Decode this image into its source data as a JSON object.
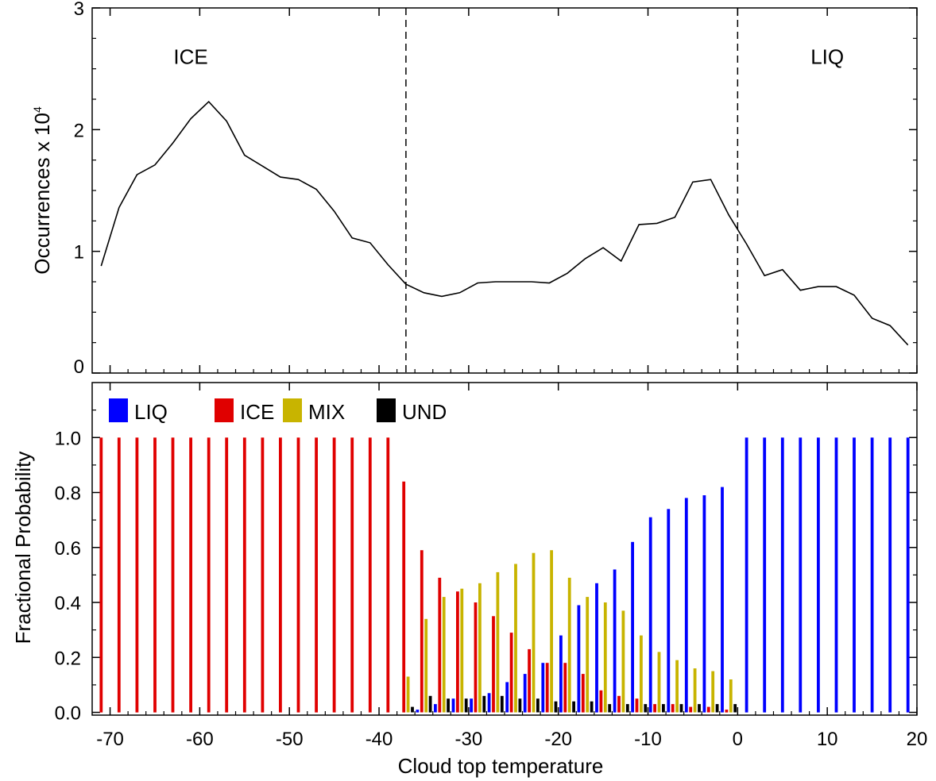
{
  "chart_data": [
    {
      "type": "line",
      "ylabel": "Occurrences x 10",
      "ylabel_exponent": "4",
      "xlim": [
        -72,
        20
      ],
      "ylim": [
        0,
        3
      ],
      "yticks": [
        "0",
        "1",
        "2",
        "3"
      ],
      "annotations": [
        {
          "text": "ICE",
          "x": -61,
          "y": 2.6
        },
        {
          "text": "LIQ",
          "x": 10,
          "y": 2.6
        }
      ],
      "vlines": [
        -37,
        0
      ],
      "x": [
        -71,
        -69,
        -67,
        -65,
        -63,
        -61,
        -59,
        -57,
        -55,
        -53,
        -51,
        -49,
        -47,
        -45,
        -43,
        -41,
        -39,
        -37,
        -35,
        -33,
        -31,
        -29,
        -27,
        -25,
        -23,
        -21,
        -19,
        -17,
        -15,
        -13,
        -11,
        -9,
        -7,
        -5,
        -3,
        -1,
        1,
        3,
        5,
        7,
        9,
        11,
        13,
        15,
        17,
        19
      ],
      "series": [
        {
          "values": [
            0.88,
            1.36,
            1.63,
            1.71,
            1.89,
            2.09,
            2.23,
            2.07,
            1.79,
            1.7,
            1.61,
            1.59,
            1.51,
            1.33,
            1.11,
            1.07,
            0.89,
            0.73,
            0.66,
            0.63,
            0.66,
            0.74,
            0.75,
            0.75,
            0.75,
            0.74,
            0.82,
            0.94,
            1.03,
            0.92,
            1.22,
            1.23,
            1.28,
            1.57,
            1.59,
            1.3,
            1.06,
            0.8,
            0.85,
            0.68,
            0.71,
            0.71,
            0.64,
            0.45,
            0.39,
            0.23
          ]
        }
      ]
    },
    {
      "type": "bar",
      "xlabel": "Cloud top temperature",
      "ylabel": "Fractional Probability",
      "xlim": [
        -72,
        20
      ],
      "ylim": [
        -0.01,
        1.2
      ],
      "xticks": [
        "-70",
        "-60",
        "-50",
        "-40",
        "-30",
        "-20",
        "-10",
        "0",
        "10",
        "20"
      ],
      "yticks": [
        "0.0",
        "0.2",
        "0.4",
        "0.6",
        "0.8",
        "1.0"
      ],
      "legend": "top-left",
      "x": [
        -71,
        -69,
        -67,
        -65,
        -63,
        -61,
        -59,
        -57,
        -55,
        -53,
        -51,
        -49,
        -47,
        -45,
        -43,
        -41,
        -39,
        -37,
        -35,
        -33,
        -31,
        -29,
        -27,
        -25,
        -23,
        -21,
        -19,
        -17,
        -15,
        -13,
        -11,
        -9,
        -7,
        -5,
        -3,
        -1,
        1,
        3,
        5,
        7,
        9,
        11,
        13,
        15,
        17,
        19
      ],
      "series": [
        {
          "name": "LIQ",
          "color": "#0000ff",
          "values": [
            0,
            0,
            0,
            0,
            0,
            0,
            0,
            0,
            0,
            0,
            0,
            0,
            0,
            0,
            0,
            0,
            0,
            0,
            0.01,
            0.03,
            0.05,
            0.05,
            0.07,
            0.11,
            0.14,
            0.18,
            0.28,
            0.39,
            0.47,
            0.52,
            0.62,
            0.71,
            0.74,
            0.78,
            0.79,
            0.82,
            1.0,
            1.0,
            1.0,
            1.0,
            1.0,
            1.0,
            1.0,
            1.0,
            1.0,
            1.0
          ]
        },
        {
          "name": "ICE",
          "color": "#e00000",
          "values": [
            1.0,
            1.0,
            1.0,
            1.0,
            1.0,
            1.0,
            1.0,
            1.0,
            1.0,
            1.0,
            1.0,
            1.0,
            1.0,
            1.0,
            1.0,
            1.0,
            1.0,
            0.84,
            0.59,
            0.49,
            0.44,
            0.4,
            0.35,
            0.29,
            0.23,
            0.18,
            0.18,
            0.14,
            0.08,
            0.06,
            0.05,
            0.03,
            0.03,
            0.02,
            0.02,
            0.01,
            0,
            0,
            0,
            0,
            0,
            0,
            0,
            0,
            0,
            0
          ]
        },
        {
          "name": "MIX",
          "color": "#c8b400",
          "values": [
            0,
            0,
            0,
            0,
            0,
            0,
            0,
            0,
            0,
            0,
            0,
            0,
            0,
            0,
            0,
            0,
            0,
            0.13,
            0.34,
            0.42,
            0.45,
            0.47,
            0.51,
            0.54,
            0.58,
            0.59,
            0.49,
            0.42,
            0.4,
            0.37,
            0.28,
            0.22,
            0.19,
            0.16,
            0.15,
            0.12,
            0,
            0,
            0,
            0,
            0,
            0,
            0,
            0,
            0,
            0
          ]
        },
        {
          "name": "UND",
          "color": "#000000",
          "values": [
            0,
            0,
            0,
            0,
            0,
            0,
            0,
            0,
            0,
            0,
            0,
            0,
            0,
            0,
            0,
            0,
            0,
            0.02,
            0.06,
            0.05,
            0.05,
            0.06,
            0.06,
            0.05,
            0.05,
            0.04,
            0.04,
            0.04,
            0.03,
            0.03,
            0.03,
            0.03,
            0.03,
            0.03,
            0.03,
            0.03,
            0,
            0,
            0,
            0,
            0,
            0,
            0,
            0,
            0,
            0
          ]
        }
      ]
    }
  ]
}
